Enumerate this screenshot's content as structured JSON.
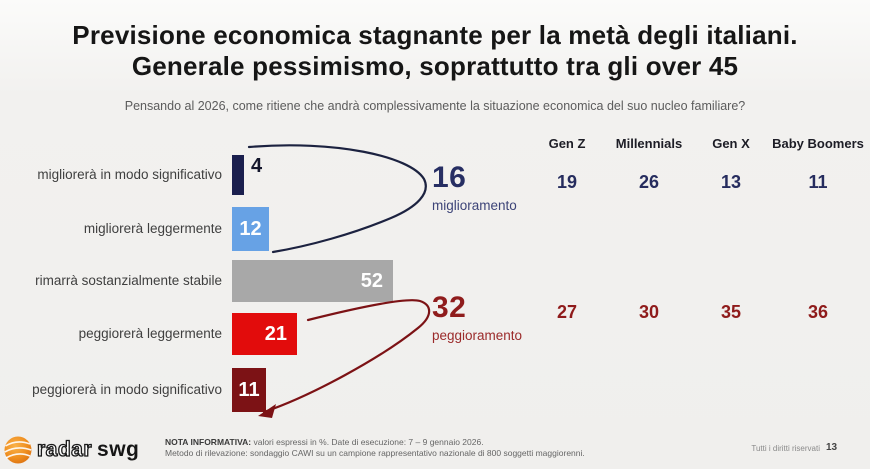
{
  "slide": {
    "title_line1": "Previsione economica stagnante per la metà degli italiani.",
    "title_line2": "Generale pessimismo, soprattutto tra gli over 45",
    "subtitle": "Pensando al 2026, come ritiene che andrà complessivamente la situazione economica del suo nucleo familiare?"
  },
  "chart_data": {
    "type": "bar",
    "orientation": "horizontal",
    "unit": "%",
    "categories": [
      "migliorerà in modo significativo",
      "migliorerà leggermente",
      "rimarrà sostanzialmente stabile",
      "peggiorerà leggermente",
      "peggiorerà in modo significativo"
    ],
    "values": [
      4,
      12,
      52,
      21,
      11
    ],
    "bar_colors": [
      "#1b1f4e",
      "#67a2e5",
      "#a8a8a8",
      "#e20c0c",
      "#7c1215"
    ],
    "aggregates": [
      {
        "id": "miglioramento",
        "value": 16,
        "label": "miglioramento"
      },
      {
        "id": "peggioramento",
        "value": 32,
        "label": "peggioramento"
      }
    ],
    "generations": {
      "columns": [
        "Gen Z",
        "Millennials",
        "Gen X",
        "Baby Boomers"
      ],
      "series": [
        {
          "name": "miglioramento",
          "values": [
            19,
            26,
            13,
            11
          ]
        },
        {
          "name": "peggioramento",
          "values": [
            27,
            30,
            35,
            36
          ]
        }
      ]
    },
    "accent_colors": {
      "improvement": "#272e63",
      "worsening": "#8f1c1c",
      "curve_improvement": "#1c2240",
      "curve_worsening": "#7c1215"
    }
  },
  "footer": {
    "logo_radar": "radar",
    "logo_swg": "swg",
    "note_bold": "NOTA INFORMATIVA:",
    "note_line1": "valori espressi in %. Date di esecuzione: 7 – 9 gennaio 2026.",
    "note_line2": "Metodo di rilevazione: sondaggio CAWI su un campione rappresentativo nazionale di 800 soggetti maggiorenni.",
    "rights": "Tutti i diritti riservati",
    "page_number": "13"
  }
}
